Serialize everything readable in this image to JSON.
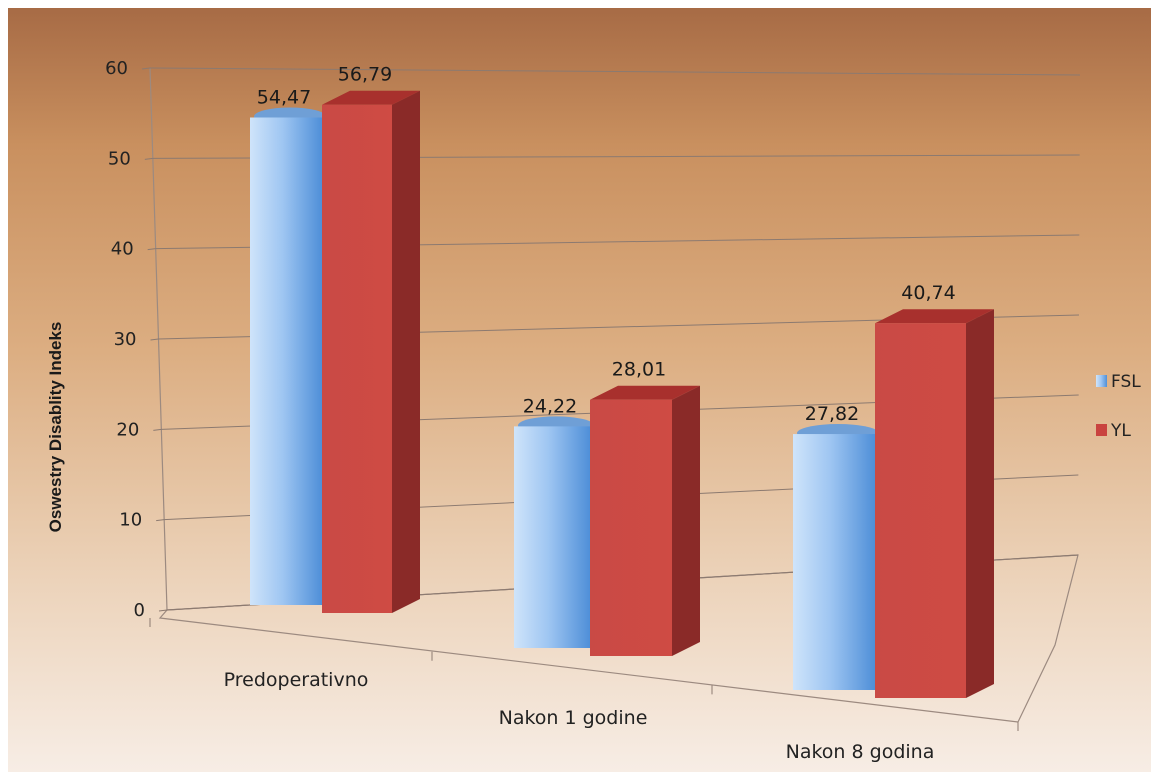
{
  "chart_data": {
    "type": "bar",
    "title": "",
    "xlabel": "",
    "ylabel": "Oswestry Disablity Indeks",
    "categories": [
      "Predoperativno",
      "Nakon 1 godine",
      "Nakon 8 godina"
    ],
    "series": [
      {
        "name": "FSL",
        "values": [
          54.47,
          24.22,
          27.82
        ],
        "labels": [
          "54,47",
          "24,22",
          "27,82"
        ],
        "color": "#7fb2ea"
      },
      {
        "name": "YL",
        "values": [
          56.79,
          28.01,
          40.74
        ],
        "labels": [
          "56,79",
          "28,01",
          "40,74"
        ],
        "color": "#c9433f"
      }
    ],
    "yticks": [
      "0",
      "10",
      "20",
      "30",
      "40",
      "50",
      "60"
    ],
    "ylim": [
      0,
      60
    ],
    "grid": true,
    "legend_position": "right",
    "style": "3d-column"
  }
}
